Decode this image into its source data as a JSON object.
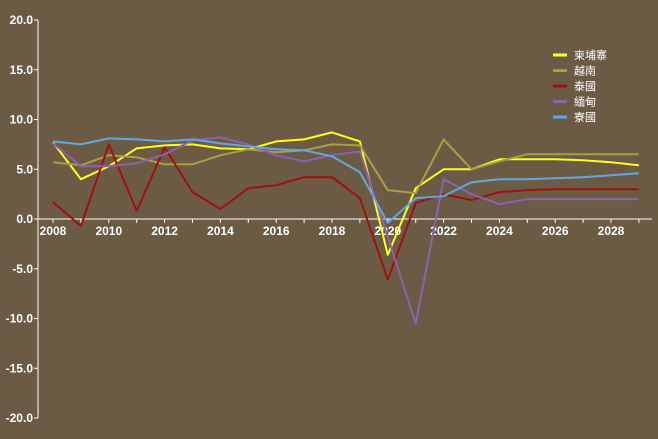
{
  "chart_data": {
    "type": "line",
    "x": [
      2008,
      2009,
      2010,
      2011,
      2012,
      2013,
      2014,
      2015,
      2016,
      2017,
      2018,
      2019,
      2020,
      2021,
      2022,
      2023,
      2024,
      2025,
      2026,
      2027,
      2028,
      2029
    ],
    "x_tick_labels": [
      "2008",
      "2010",
      "2012",
      "2014",
      "2016",
      "2018",
      "2020",
      "2022",
      "2024",
      "2026",
      "2028"
    ],
    "y_tick_labels": [
      "20.0",
      "15.0",
      "10.0",
      "5.0",
      "0.0",
      "-5.0",
      "-10.0",
      "-15.0",
      "-20.0"
    ],
    "ylim": [
      -20,
      20
    ],
    "xlim": [
      2008,
      2029.5
    ],
    "grid": false,
    "legend_position": "top-right",
    "series": [
      {
        "name": "柬埔寨",
        "color": "#ffff1a",
        "values": [
          7.7,
          4.0,
          5.3,
          7.1,
          7.4,
          7.5,
          7.1,
          7.0,
          7.8,
          8.0,
          8.7,
          7.8,
          -3.6,
          3.1,
          5.0,
          5.0,
          6.0,
          6.0,
          6.0,
          5.9,
          5.7,
          5.4
        ]
      },
      {
        "name": "越南",
        "color": "#a8a040",
        "values": [
          5.7,
          5.4,
          6.4,
          6.2,
          5.5,
          5.5,
          6.4,
          7.0,
          6.7,
          6.9,
          7.5,
          7.4,
          2.9,
          2.6,
          8.0,
          5.0,
          5.8,
          6.5,
          6.5,
          6.5,
          6.5,
          6.5
        ]
      },
      {
        "name": "泰國",
        "color": "#a01010",
        "values": [
          1.7,
          -0.7,
          7.5,
          0.8,
          7.2,
          2.7,
          1.0,
          3.1,
          3.4,
          4.2,
          4.2,
          2.1,
          -6.1,
          1.6,
          2.5,
          1.9,
          2.7,
          2.9,
          3.0,
          3.0,
          3.0,
          3.0
        ]
      },
      {
        "name": "緬甸",
        "color": "#9060b0",
        "values": [
          7.6,
          5.3,
          5.3,
          5.6,
          6.5,
          7.9,
          8.2,
          7.5,
          6.4,
          5.8,
          6.4,
          6.8,
          -1.8,
          -10.5,
          4.0,
          2.5,
          1.5,
          2.0,
          2.0,
          2.0,
          2.0,
          2.0
        ]
      },
      {
        "name": "寮國",
        "color": "#60a8e0",
        "values": [
          7.8,
          7.5,
          8.1,
          8.0,
          7.8,
          8.0,
          7.6,
          7.3,
          7.0,
          6.9,
          6.3,
          4.7,
          -0.4,
          2.1,
          2.3,
          3.7,
          4.0,
          4.0,
          4.1,
          4.2,
          4.4,
          4.6
        ]
      }
    ]
  }
}
